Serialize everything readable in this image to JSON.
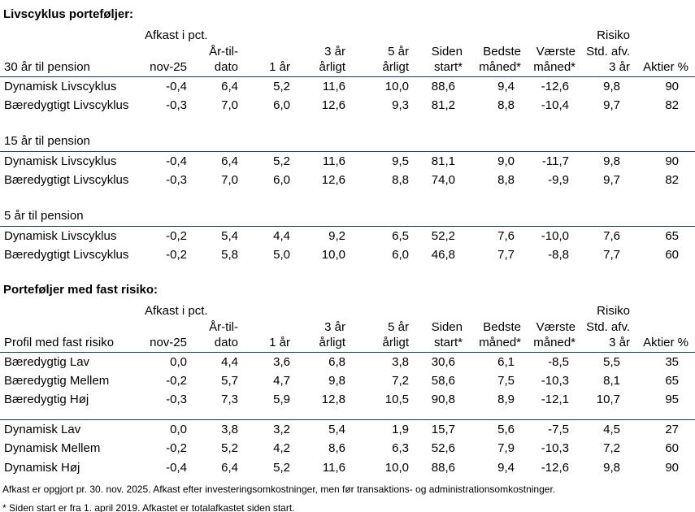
{
  "page": {
    "title_lifecycle": "Livscyklus porteføljer:",
    "title_fixed": "Porteføljer med fast risiko:"
  },
  "colors": {
    "rule": "#1f3864",
    "text": "#000000",
    "background": "#ffffff"
  },
  "header_labels": {
    "afkast_group": "Afkast i pct.",
    "risiko_group": "Risiko",
    "line2": [
      "",
      "",
      "År-til-",
      "",
      "3 år",
      "5 år",
      "Siden",
      "Bedste",
      "Værste",
      "Std. afv.",
      ""
    ],
    "line3_lifecycle": [
      "30 år til pension",
      "nov-25",
      "dato",
      "1 år",
      "årligt",
      "årligt",
      "start*",
      "måned*",
      "måned*",
      "3 år",
      "Aktier %"
    ],
    "line3_fixed": [
      "Profil med fast risiko",
      "nov-25",
      "dato",
      "1 år",
      "årligt",
      "årligt",
      "start*",
      "måned*",
      "måned*",
      "3 år",
      "Aktier %"
    ]
  },
  "lifecycle_table": {
    "sections": [
      {
        "label": "",
        "rows": [
          {
            "name": "Dynamisk Livscyklus",
            "values": [
              "-0,4",
              "6,4",
              "5,2",
              "11,6",
              "10,0",
              "88,6",
              "9,4",
              "-12,6",
              "9,8",
              "90"
            ]
          },
          {
            "name": "Bæredygtigt Livscyklus",
            "values": [
              "-0,3",
              "7,0",
              "6,0",
              "12,6",
              "9,3",
              "81,2",
              "8,8",
              "-10,4",
              "9,7",
              "82"
            ]
          }
        ]
      },
      {
        "label": "15 år til pension",
        "rows": [
          {
            "name": "Dynamisk Livscyklus",
            "values": [
              "-0,4",
              "6,4",
              "5,2",
              "11,6",
              "9,5",
              "81,1",
              "9,0",
              "-11,7",
              "9,8",
              "90"
            ]
          },
          {
            "name": "Bæredygtigt Livscyklus",
            "values": [
              "-0,3",
              "7,0",
              "6,0",
              "12,6",
              "8,8",
              "74,0",
              "8,8",
              "-9,9",
              "9,7",
              "82"
            ]
          }
        ]
      },
      {
        "label": "5 år til pension",
        "rows": [
          {
            "name": "Dynamisk Livscyklus",
            "values": [
              "-0,2",
              "5,4",
              "4,4",
              "9,2",
              "6,5",
              "52,2",
              "7,6",
              "-10,0",
              "7,6",
              "65"
            ]
          },
          {
            "name": "Bæredygtigt Livscyklus",
            "values": [
              "-0,2",
              "5,8",
              "5,0",
              "10,0",
              "6,0",
              "46,8",
              "7,7",
              "-8,8",
              "7,7",
              "60"
            ]
          }
        ]
      }
    ]
  },
  "fixed_table": {
    "sections": [
      {
        "label": "",
        "rows": [
          {
            "name": "Bæredygtig Lav",
            "values": [
              "0,0",
              "4,4",
              "3,6",
              "6,8",
              "3,8",
              "30,6",
              "6,1",
              "-8,5",
              "5,5",
              "35"
            ]
          },
          {
            "name": "Bæredygtig Mellem",
            "values": [
              "-0,2",
              "5,7",
              "4,7",
              "9,8",
              "7,2",
              "58,6",
              "7,5",
              "-10,3",
              "8,1",
              "65"
            ]
          },
          {
            "name": "Bæredygtig Høj",
            "values": [
              "-0,3",
              "7,3",
              "5,9",
              "12,8",
              "10,5",
              "90,8",
              "8,9",
              "-12,1",
              "10,7",
              "95"
            ]
          }
        ]
      },
      {
        "label": "",
        "rows": [
          {
            "name": "Dynamisk Lav",
            "values": [
              "0,0",
              "3,8",
              "3,2",
              "5,4",
              "1,9",
              "15,7",
              "5,6",
              "-7,5",
              "4,5",
              "27"
            ]
          },
          {
            "name": "Dynamisk Mellem",
            "values": [
              "-0,2",
              "5,2",
              "4,2",
              "8,6",
              "6,3",
              "52,6",
              "7,9",
              "-10,3",
              "7,2",
              "60"
            ]
          },
          {
            "name": "Dynamisk Høj",
            "values": [
              "-0,4",
              "6,4",
              "5,2",
              "11,6",
              "10,0",
              "88,6",
              "9,4",
              "-12,6",
              "9,8",
              "90"
            ]
          }
        ]
      }
    ]
  },
  "footnotes": [
    "Afkast er opgjort pr. 30. nov. 2025. Afkast efter investeringsomkostninger, men før transaktions- og administrationsomkostninger.",
    "* Siden start er fra 1. april 2019. Afkastet er totalafkastet siden start."
  ]
}
